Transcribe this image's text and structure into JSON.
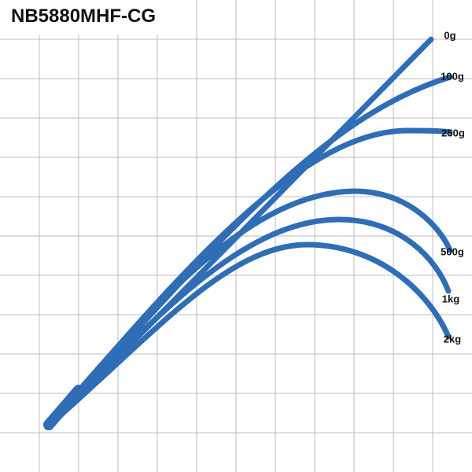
{
  "title": "NB5880MHF-CG",
  "curves": [
    {
      "label": "0g"
    },
    {
      "label": "100g"
    },
    {
      "label": "250g"
    },
    {
      "label": "500g"
    },
    {
      "label": "1kg"
    },
    {
      "label": "2kg"
    }
  ]
}
